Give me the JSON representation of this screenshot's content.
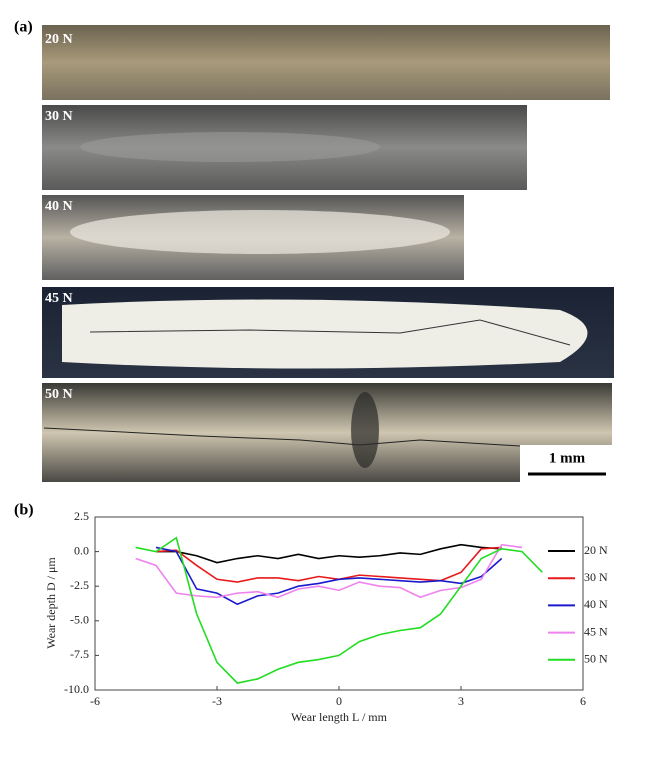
{
  "panel_a": {
    "label": "(a)",
    "images": [
      {
        "label": "20 N"
      },
      {
        "label": "30 N"
      },
      {
        "label": "40 N"
      },
      {
        "label": "45 N"
      },
      {
        "label": "50 N"
      }
    ],
    "scale_bar": "1 mm"
  },
  "panel_b_label": "(b)",
  "chart_data": {
    "type": "line",
    "x_label": "Wear length L / mm",
    "y_label": "Wear depth D / μm",
    "x": [
      -5,
      -4.5,
      -4,
      -3.5,
      -3,
      -2.5,
      -2,
      -1.5,
      -1,
      -0.5,
      0,
      0.5,
      1,
      1.5,
      2,
      2.5,
      3,
      3.5,
      4,
      4.5,
      5
    ],
    "series": [
      {
        "name": "20 N",
        "color": "#000000",
        "values": [
          null,
          0,
          0,
          -0.3,
          -0.8,
          -0.5,
          -0.3,
          -0.5,
          -0.2,
          -0.5,
          -0.3,
          -0.4,
          -0.3,
          -0.1,
          -0.2,
          0.2,
          0.5,
          0.3,
          0.2,
          null,
          null
        ]
      },
      {
        "name": "30 N",
        "color": "#e8191a",
        "values": [
          null,
          0,
          0.1,
          -1.0,
          -2.0,
          -2.2,
          -1.9,
          -1.9,
          -2.1,
          -1.8,
          -2.0,
          -1.7,
          -1.8,
          -1.9,
          -2.0,
          -2.1,
          -1.5,
          0.2,
          0.3,
          null,
          null
        ]
      },
      {
        "name": "40 N",
        "color": "#1a1acc",
        "values": [
          null,
          0.3,
          0,
          -2.7,
          -3.0,
          -3.8,
          -3.2,
          -3.0,
          -2.5,
          -2.3,
          -2.0,
          -1.9,
          -2.0,
          -2.1,
          -2.2,
          -2.1,
          -2.3,
          -1.8,
          -0.5,
          null,
          null
        ]
      },
      {
        "name": "45 N",
        "color": "#ee82ee",
        "values": [
          -0.5,
          -1.0,
          -3.0,
          -3.2,
          -3.3,
          -3.0,
          -2.9,
          -3.3,
          -2.7,
          -2.5,
          -2.8,
          -2.2,
          -2.5,
          -2.6,
          -3.3,
          -2.8,
          -2.6,
          -2.0,
          0.5,
          0.3,
          null
        ]
      },
      {
        "name": "50 N",
        "color": "#22dd22",
        "values": [
          0.3,
          0.0,
          1.0,
          -4.5,
          -8.0,
          -9.5,
          -9.2,
          -8.5,
          -8.0,
          -7.8,
          -7.5,
          -6.5,
          -6.0,
          -5.7,
          -5.5,
          -4.5,
          -2.5,
          -0.5,
          0.2,
          0.0,
          -1.5
        ]
      }
    ],
    "xlim": [
      -6,
      6
    ],
    "xticks": [
      -6,
      -3,
      0,
      3,
      6
    ],
    "ylim": [
      -10,
      2.5
    ],
    "yticks": [
      {
        "value": -10,
        "label": "-10.0"
      },
      -7.5,
      {
        "value": -5,
        "label": "-5.0"
      },
      -2.5,
      {
        "value": 0,
        "label": "0.0"
      },
      2.5
    ],
    "grid": false,
    "legend": "right"
  }
}
